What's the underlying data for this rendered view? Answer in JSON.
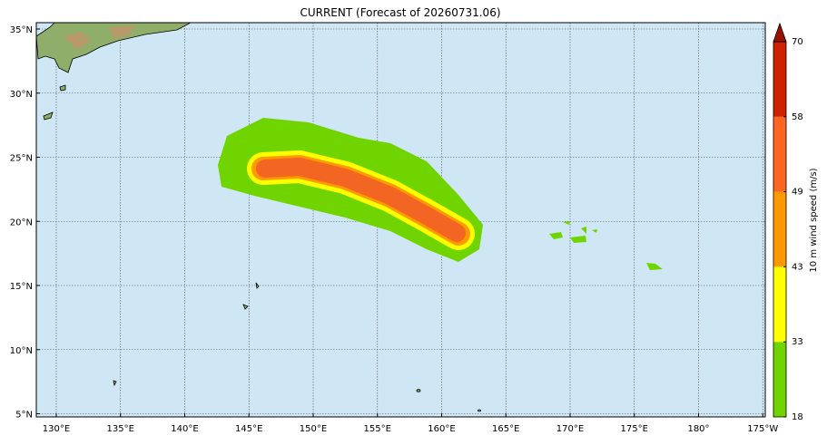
{
  "title": "CURRENT (Forecast of 20260731.06)",
  "map": {
    "lon_ticks": [
      {
        "value": 130,
        "label": "130°E"
      },
      {
        "value": 135,
        "label": "135°E"
      },
      {
        "value": 140,
        "label": "140°E"
      },
      {
        "value": 145,
        "label": "145°E"
      },
      {
        "value": 150,
        "label": "150°E"
      },
      {
        "value": 155,
        "label": "155°E"
      },
      {
        "value": 160,
        "label": "160°E"
      },
      {
        "value": 165,
        "label": "165°E"
      },
      {
        "value": 170,
        "label": "170°E"
      },
      {
        "value": 175,
        "label": "175°E"
      },
      {
        "value": 180,
        "label": "180°"
      },
      {
        "value": 185,
        "label": "175°W"
      }
    ],
    "lat_ticks": [
      {
        "value": 35,
        "label": "35°N"
      },
      {
        "value": 30,
        "label": "30°N"
      },
      {
        "value": 25,
        "label": "25°N"
      },
      {
        "value": 20,
        "label": "20°N"
      },
      {
        "value": 15,
        "label": "15°N"
      },
      {
        "value": 10,
        "label": "10°N"
      },
      {
        "value": 5,
        "label": "5°N"
      }
    ]
  },
  "colorbar": {
    "label": "10 m wind speed (m/s)",
    "levels": [
      18,
      33,
      43,
      49,
      58,
      70
    ],
    "colors": [
      "#6fd400",
      "#ffff00",
      "#ff9900",
      "#ff6622",
      "#cc2200"
    ],
    "extend_color": "#991100"
  }
}
